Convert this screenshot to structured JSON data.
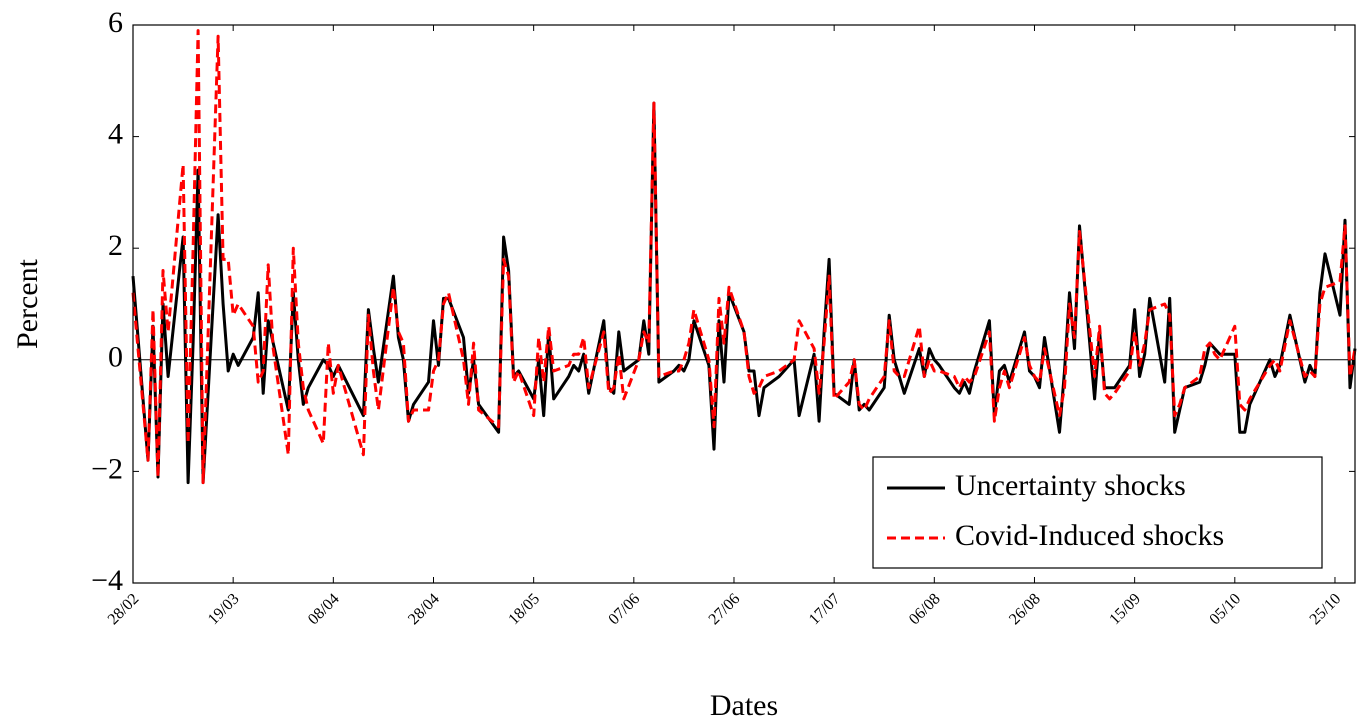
{
  "chart_data": {
    "type": "line",
    "xlabel": "Dates",
    "ylabel": "Percent",
    "x": [
      "28/02",
      "02/03",
      "03/03",
      "04/03",
      "05/03",
      "06/03",
      "09/03",
      "10/03",
      "11/03",
      "12/03",
      "13/03",
      "16/03",
      "17/03",
      "18/03",
      "19/03",
      "20/03",
      "23/03",
      "24/03",
      "25/03",
      "26/03",
      "27/03",
      "30/03",
      "31/03",
      "01/04",
      "02/04",
      "03/04",
      "06/04",
      "07/04",
      "08/04",
      "09/04",
      "14/04",
      "15/04",
      "16/04",
      "17/04",
      "20/04",
      "21/04",
      "22/04",
      "23/04",
      "24/04",
      "27/04",
      "28/04",
      "29/04",
      "30/04",
      "01/05",
      "04/05",
      "05/05",
      "06/05",
      "07/05",
      "11/05",
      "12/05",
      "13/05",
      "14/05",
      "15/05",
      "18/05",
      "19/05",
      "20/05",
      "21/05",
      "22/05",
      "25/05",
      "26/05",
      "27/05",
      "28/05",
      "29/05",
      "01/06",
      "02/06",
      "03/06",
      "04/06",
      "05/06",
      "08/06",
      "09/06",
      "10/06",
      "11/06",
      "12/06",
      "15/06",
      "16/06",
      "17/06",
      "18/06",
      "19/06",
      "22/06",
      "23/06",
      "24/06",
      "25/06",
      "26/06",
      "29/06",
      "30/06",
      "01/07",
      "02/07",
      "03/07",
      "06/07",
      "09/07",
      "10/07",
      "13/07",
      "14/07",
      "15/07",
      "16/07",
      "17/07",
      "20/07",
      "21/07",
      "22/07",
      "23/07",
      "24/07",
      "27/07",
      "28/07",
      "29/07",
      "30/07",
      "31/07",
      "03/08",
      "04/08",
      "05/08",
      "06/08",
      "07/08",
      "10/08",
      "11/08",
      "12/08",
      "13/08",
      "14/08",
      "17/08",
      "18/08",
      "19/08",
      "20/08",
      "21/08",
      "24/08",
      "25/08",
      "26/08",
      "27/08",
      "28/08",
      "31/08",
      "01/09",
      "02/09",
      "03/09",
      "04/09",
      "07/09",
      "08/09",
      "09/09",
      "10/09",
      "11/09",
      "14/09",
      "15/09",
      "16/09",
      "17/09",
      "18/09",
      "21/09",
      "22/09",
      "23/09",
      "24/09",
      "25/09",
      "28/09",
      "29/09",
      "30/09",
      "01/10",
      "02/10",
      "05/10",
      "06/10",
      "07/10",
      "08/10",
      "12/10",
      "13/10",
      "14/10",
      "16/10",
      "19/10",
      "20/10",
      "21/10",
      "22/10",
      "23/10",
      "26/10",
      "27/10",
      "28/10",
      "29/10"
    ],
    "series": [
      {
        "name": "Uncertainty shocks",
        "color": "#000000",
        "dash": "solid",
        "values": [
          1.5,
          -1.8,
          0.6,
          -2.1,
          1.0,
          -0.3,
          2.2,
          -2.2,
          0.3,
          3.4,
          -2.2,
          2.6,
          1.0,
          -0.2,
          0.1,
          -0.1,
          0.4,
          1.2,
          -0.6,
          0.7,
          0.3,
          -0.9,
          1.2,
          0.0,
          -0.8,
          -0.5,
          0.0,
          -0.1,
          -0.3,
          -0.1,
          -1.0,
          0.9,
          0.2,
          -0.4,
          1.5,
          0.4,
          0.0,
          -1.1,
          -0.8,
          -0.4,
          0.7,
          -0.1,
          1.1,
          1.1,
          0.4,
          -0.6,
          0.0,
          -0.8,
          -1.3,
          2.2,
          1.6,
          -0.3,
          -0.2,
          -0.7,
          0.0,
          -1.0,
          0.5,
          -0.7,
          -0.3,
          -0.1,
          -0.2,
          0.1,
          -0.6,
          0.7,
          -0.5,
          -0.6,
          0.5,
          -0.2,
          0.0,
          0.7,
          0.1,
          4.6,
          -0.4,
          -0.2,
          -0.1,
          -0.2,
          0.0,
          0.7,
          -0.1,
          -1.6,
          0.7,
          -0.4,
          1.2,
          0.5,
          -0.2,
          -0.2,
          -1.0,
          -0.5,
          -0.3,
          0.0,
          -1.0,
          0.1,
          -1.1,
          0.5,
          1.8,
          -0.6,
          -0.8,
          0.0,
          -0.9,
          -0.8,
          -0.9,
          -0.5,
          0.8,
          0.0,
          -0.3,
          -0.6,
          0.2,
          -0.3,
          0.2,
          0.0,
          -0.1,
          -0.5,
          -0.6,
          -0.4,
          -0.6,
          -0.2,
          0.7,
          -1.0,
          -0.2,
          -0.1,
          -0.4,
          0.5,
          -0.2,
          -0.3,
          -0.5,
          0.4,
          -1.3,
          -0.2,
          1.2,
          0.2,
          2.4,
          -0.7,
          0.5,
          -0.5,
          -0.5,
          -0.5,
          -0.1,
          0.9,
          -0.3,
          0.1,
          1.1,
          -0.4,
          1.1,
          -1.3,
          -0.9,
          -0.5,
          -0.4,
          -0.1,
          0.3,
          0.2,
          0.1,
          0.1,
          -1.3,
          -1.3,
          -0.8,
          0.0,
          -0.3,
          -0.1,
          0.8,
          -0.4,
          -0.1,
          -0.3,
          1.2,
          1.9,
          0.8,
          2.5,
          -0.5,
          0.2
        ]
      },
      {
        "name": "Covid-Induced shocks",
        "color": "#ff0000",
        "dash": "dashed",
        "values": [
          1.2,
          -1.8,
          0.9,
          -2.1,
          1.6,
          0.5,
          3.5,
          -1.5,
          2.0,
          5.9,
          -2.2,
          5.8,
          1.8,
          1.8,
          0.8,
          1.0,
          0.6,
          -0.4,
          -0.2,
          1.7,
          0.2,
          -1.7,
          2.0,
          0.3,
          -0.5,
          -0.9,
          -1.5,
          0.3,
          -0.6,
          -0.1,
          -1.7,
          0.8,
          -0.2,
          -0.9,
          1.3,
          0.5,
          0.3,
          -1.1,
          -0.9,
          -0.9,
          -0.2,
          0.0,
          1.0,
          1.2,
          0.0,
          -0.8,
          0.3,
          -0.9,
          -1.2,
          1.8,
          1.5,
          -0.4,
          -0.2,
          -1.0,
          0.4,
          -0.4,
          0.6,
          -0.2,
          -0.1,
          0.1,
          0.1,
          0.4,
          -0.5,
          0.5,
          -0.6,
          -0.5,
          0.1,
          -0.7,
          0.0,
          0.5,
          0.3,
          4.6,
          -0.3,
          -0.2,
          -0.2,
          0.0,
          0.3,
          0.9,
          0.0,
          -1.2,
          1.1,
          0.3,
          1.3,
          0.5,
          -0.3,
          -0.6,
          -0.5,
          -0.3,
          -0.2,
          0.0,
          0.7,
          0.2,
          -0.6,
          0.3,
          1.5,
          -0.7,
          -0.4,
          0.0,
          -0.8,
          -0.9,
          -0.7,
          -0.3,
          0.7,
          -0.2,
          -0.3,
          -0.3,
          0.6,
          -0.3,
          0.0,
          -0.2,
          -0.2,
          -0.3,
          -0.5,
          -0.3,
          -0.4,
          -0.3,
          0.5,
          -1.1,
          -0.5,
          -0.2,
          -0.5,
          0.4,
          -0.1,
          -0.3,
          -0.4,
          0.2,
          -1.0,
          -0.5,
          1.0,
          0.4,
          2.3,
          -0.3,
          0.6,
          -0.6,
          -0.7,
          -0.6,
          -0.2,
          0.5,
          -0.1,
          0.3,
          0.9,
          1.0,
          0.8,
          -1.0,
          -0.8,
          -0.5,
          -0.3,
          0.2,
          0.3,
          0.1,
          0.0,
          0.6,
          -0.8,
          -0.9,
          -0.7,
          -0.1,
          0.0,
          -0.2,
          0.7,
          -0.3,
          -0.2,
          -0.3,
          1.0,
          1.3,
          1.4,
          2.4,
          -0.3,
          0.2
        ]
      }
    ],
    "xlim": [
      "28/02",
      "29/10"
    ],
    "xticks": [
      "28/02",
      "19/03",
      "08/04",
      "28/04",
      "18/05",
      "07/06",
      "27/06",
      "17/07",
      "06/08",
      "26/08",
      "15/09",
      "05/10",
      "25/10"
    ],
    "ylim": [
      -4,
      6
    ],
    "yticks": [
      {
        "value": -4,
        "label": "−4"
      },
      {
        "value": -2,
        "label": "−2"
      },
      0,
      2,
      4,
      6
    ],
    "zero_line": true,
    "legend": "lower right"
  }
}
